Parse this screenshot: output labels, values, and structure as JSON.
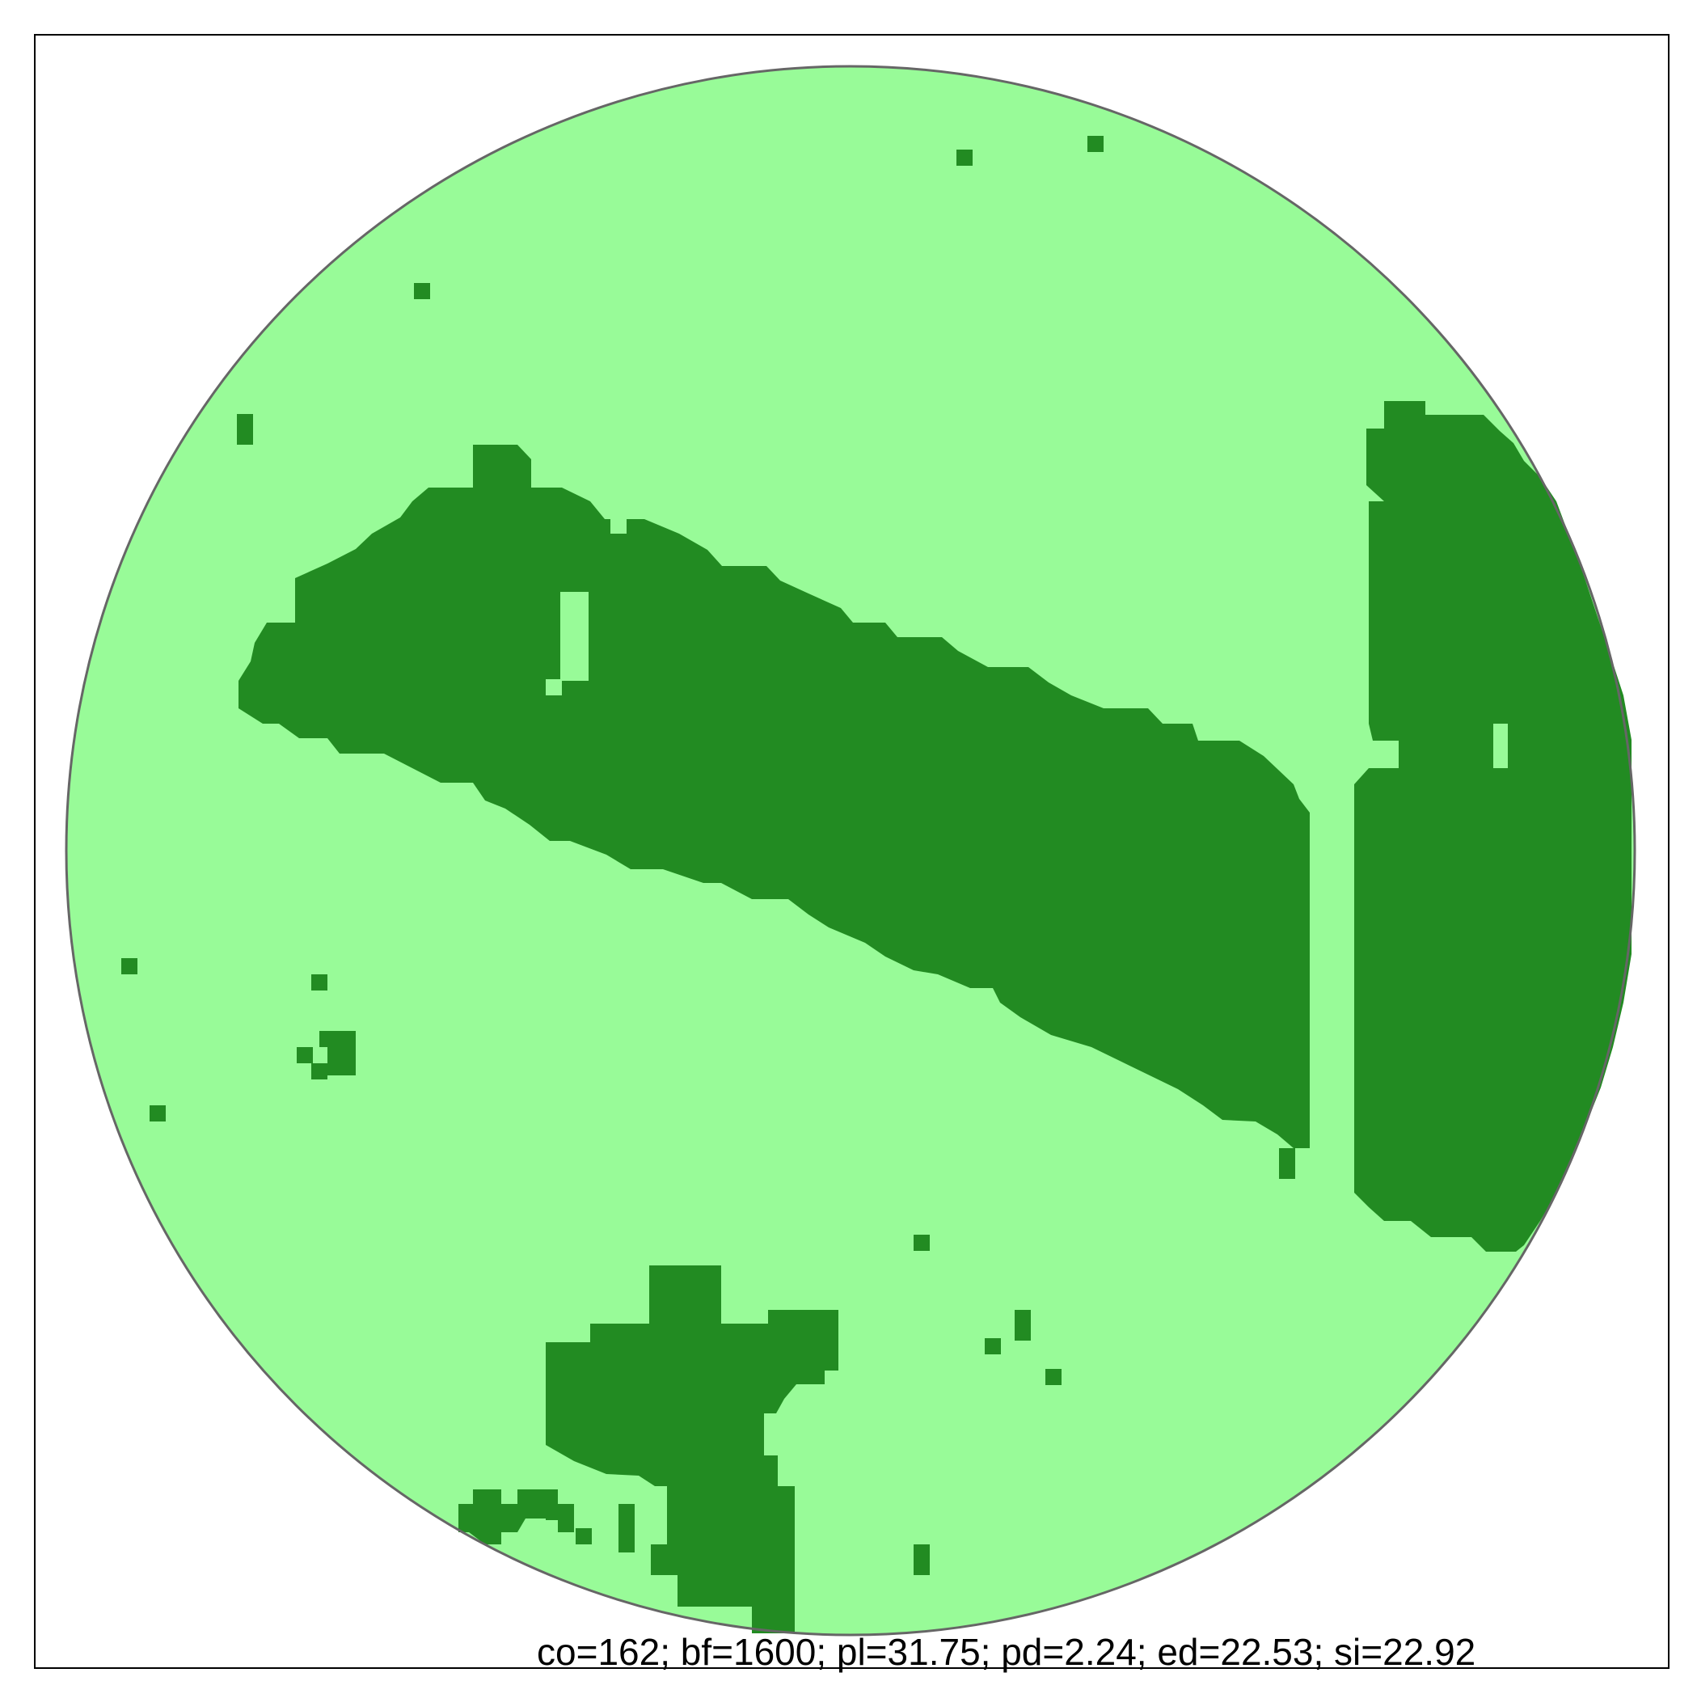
{
  "colors": {
    "background": "#ffffff",
    "frame": "#000000",
    "disc_outline": "#666666",
    "habitat": "#98fb98",
    "patch": "#228b22"
  },
  "stats_label": "co=162; bf=1600; pl=31.75; pd=2.24; ed=22.53; si=22.92"
}
